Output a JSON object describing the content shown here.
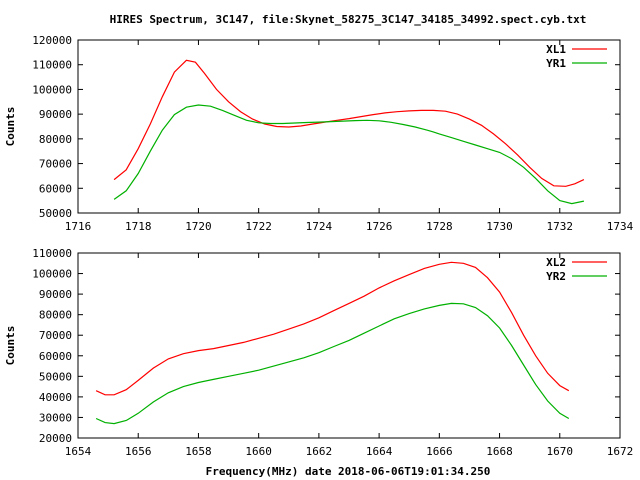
{
  "title": "HIRES Spectrum, 3C147, file:Skynet_58275_3C147_34185_34992.spect.cyb.txt",
  "xlabel_bottom": "Frequency(MHz) date 2018-06-06T19:01:34.250",
  "chart_data": [
    {
      "type": "line",
      "ylabel": "Counts",
      "xlim": [
        1716,
        1734
      ],
      "ylim": [
        50000,
        120000
      ],
      "xticks": [
        "1716",
        "1718",
        "1720",
        "1722",
        "1724",
        "1726",
        "1728",
        "1730",
        "1732",
        "1734"
      ],
      "yticks": [
        "50000",
        "60000",
        "70000",
        "80000",
        "90000",
        "100000",
        "110000",
        "120000"
      ],
      "legend": "top-right",
      "series": [
        {
          "name": "XL1",
          "color": "#ff0000",
          "x": [
            1717.2,
            1717.6,
            1718.0,
            1718.4,
            1718.8,
            1719.2,
            1719.6,
            1719.9,
            1720.2,
            1720.6,
            1721.0,
            1721.4,
            1721.8,
            1722.2,
            1722.6,
            1723.0,
            1723.4,
            1723.8,
            1724.2,
            1724.6,
            1725.0,
            1725.4,
            1725.8,
            1726.2,
            1726.6,
            1727.0,
            1727.4,
            1727.8,
            1728.2,
            1728.6,
            1729.0,
            1729.4,
            1729.8,
            1730.2,
            1730.6,
            1731.0,
            1731.4,
            1731.8,
            1732.2,
            1732.5,
            1732.8
          ],
          "y": [
            63500,
            67500,
            76000,
            86000,
            97000,
            107000,
            111800,
            111000,
            106500,
            100000,
            95000,
            91000,
            88000,
            86000,
            85000,
            84800,
            85200,
            86000,
            86800,
            87500,
            88200,
            89000,
            89800,
            90500,
            91000,
            91300,
            91500,
            91500,
            91200,
            90000,
            88000,
            85500,
            82000,
            78000,
            73500,
            68500,
            64000,
            61000,
            60800,
            61800,
            63500
          ]
        },
        {
          "name": "YR1",
          "color": "#00b000",
          "x": [
            1717.2,
            1717.6,
            1718.0,
            1718.4,
            1718.8,
            1719.2,
            1719.6,
            1720.0,
            1720.4,
            1720.8,
            1721.2,
            1721.6,
            1722.0,
            1722.4,
            1722.8,
            1723.2,
            1723.6,
            1724.0,
            1724.4,
            1724.8,
            1725.2,
            1725.6,
            1726.0,
            1726.4,
            1726.8,
            1727.2,
            1727.6,
            1727.8,
            1728.0,
            1728.4,
            1728.8,
            1729.2,
            1729.6,
            1730.0,
            1730.4,
            1730.8,
            1731.2,
            1731.6,
            1732.0,
            1732.4,
            1732.8
          ],
          "y": [
            55500,
            59000,
            66000,
            75000,
            83500,
            89800,
            92800,
            93700,
            93200,
            91500,
            89500,
            87500,
            86500,
            86200,
            86200,
            86400,
            86600,
            86800,
            87000,
            87200,
            87400,
            87500,
            87300,
            86700,
            85800,
            84800,
            83500,
            82800,
            82000,
            80500,
            79000,
            77500,
            76000,
            74500,
            72000,
            68500,
            64000,
            59000,
            55000,
            53800,
            54800
          ]
        }
      ]
    },
    {
      "type": "line",
      "ylabel": "Counts",
      "xlim": [
        1654,
        1672
      ],
      "ylim": [
        20000,
        110000
      ],
      "xticks": [
        "1654",
        "1656",
        "1658",
        "1660",
        "1662",
        "1664",
        "1666",
        "1668",
        "1670",
        "1672"
      ],
      "yticks": [
        "20000",
        "30000",
        "40000",
        "50000",
        "60000",
        "70000",
        "80000",
        "90000",
        "100000",
        "110000"
      ],
      "legend": "top-right",
      "series": [
        {
          "name": "XL2",
          "color": "#ff0000",
          "x": [
            1654.6,
            1654.9,
            1655.2,
            1655.6,
            1656.0,
            1656.5,
            1657.0,
            1657.5,
            1658.0,
            1658.5,
            1659.0,
            1659.5,
            1660.0,
            1660.5,
            1661.0,
            1661.5,
            1662.0,
            1662.5,
            1663.0,
            1663.5,
            1664.0,
            1664.5,
            1665.0,
            1665.5,
            1666.0,
            1666.4,
            1666.8,
            1667.2,
            1667.6,
            1668.0,
            1668.4,
            1668.8,
            1669.2,
            1669.6,
            1670.0,
            1670.3
          ],
          "y": [
            43000,
            41000,
            41000,
            43500,
            48000,
            54000,
            58500,
            61000,
            62500,
            63500,
            65000,
            66500,
            68500,
            70500,
            73000,
            75500,
            78500,
            82000,
            85500,
            89000,
            93000,
            96500,
            99500,
            102500,
            104500,
            105500,
            105000,
            103000,
            98000,
            91000,
            81000,
            70000,
            60000,
            51500,
            45500,
            43000
          ]
        },
        {
          "name": "YR2",
          "color": "#00b000",
          "x": [
            1654.6,
            1654.9,
            1655.2,
            1655.6,
            1656.0,
            1656.5,
            1657.0,
            1657.5,
            1658.0,
            1658.5,
            1659.0,
            1659.5,
            1660.0,
            1660.5,
            1661.0,
            1661.5,
            1662.0,
            1662.5,
            1663.0,
            1663.5,
            1664.0,
            1664.5,
            1665.0,
            1665.5,
            1666.0,
            1666.4,
            1666.8,
            1667.2,
            1667.6,
            1668.0,
            1668.4,
            1668.8,
            1669.2,
            1669.6,
            1670.0,
            1670.3
          ],
          "y": [
            29500,
            27500,
            27000,
            28500,
            32000,
            37500,
            42000,
            45000,
            47000,
            48500,
            50000,
            51500,
            53000,
            55000,
            57000,
            59000,
            61500,
            64500,
            67500,
            71000,
            74500,
            78000,
            80500,
            82800,
            84500,
            85500,
            85300,
            83500,
            79500,
            73500,
            65000,
            55500,
            46000,
            38000,
            32000,
            29500
          ]
        }
      ]
    }
  ]
}
